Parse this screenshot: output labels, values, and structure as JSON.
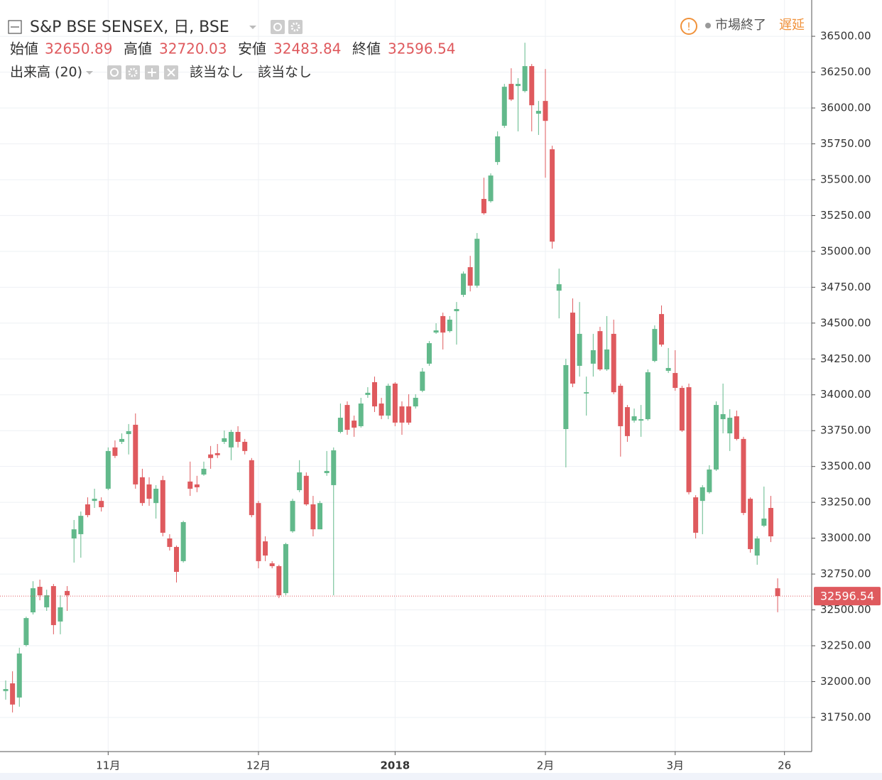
{
  "chart_data": {
    "type": "candlestick",
    "title": "S&P BSE SENSEX, 日, BSE",
    "ohlc_labels": [
      "始値",
      "高値",
      "安値",
      "終値"
    ],
    "volume_label": "出来高 (20)",
    "indicator_values": [
      "該当なし",
      "該当なし"
    ],
    "status": "市場終了",
    "delay": "遅延",
    "up_color": "#62b98b",
    "down_color": "#df5a5e",
    "categories": [
      null,
      null,
      null,
      null,
      null,
      null,
      null,
      null,
      null,
      null,
      null,
      null,
      null,
      null,
      null,
      "11月",
      null,
      null,
      null,
      null,
      null,
      null,
      null,
      null,
      null,
      null,
      null,
      null,
      null,
      null,
      null,
      null,
      null,
      null,
      null,
      null,
      null,
      "12月",
      null,
      null,
      null,
      null,
      null,
      null,
      null,
      null,
      null,
      null,
      null,
      null,
      null,
      null,
      null,
      null,
      null,
      null,
      null,
      "2018",
      null,
      null,
      null,
      null,
      null,
      null,
      null,
      null,
      null,
      null,
      null,
      null,
      null,
      null,
      null,
      null,
      null,
      null,
      null,
      null,
      null,
      "2月",
      null,
      null,
      null,
      null,
      null,
      null,
      null,
      null,
      null,
      null,
      null,
      null,
      null,
      null,
      null,
      null,
      null,
      null,
      "3月",
      null,
      null,
      null,
      null,
      null,
      null,
      null,
      null,
      null,
      null,
      null,
      null,
      null,
      null,
      null,
      "26"
    ],
    "open": [
      31934,
      31988,
      31889,
      32255,
      32483,
      32661,
      32518,
      32666,
      32419,
      32632,
      32998,
      33028,
      33236,
      33260,
      33260,
      33345,
      33633,
      33672,
      33726,
      33791,
      33425,
      33375,
      33245,
      33405,
      32998,
      32939,
      32840,
      33395,
      33375,
      33444,
      33584,
      33593,
      33672,
      33633,
      33741,
      33672,
      33544,
      33245,
      32978,
      32825,
      32805,
      32617,
      33048,
      33335,
      33435,
      33236,
      33062,
      33454,
      33370,
      33741,
      33929,
      33820,
      33781,
      33999,
      34088,
      33939,
      33855,
      34078,
      33919,
      33919,
      33919,
      34028,
      34217,
      34434,
      34549,
      34444,
      34583,
      34697,
      34890,
      34761,
      35366,
      35350,
      35623,
      35876,
      36168,
      36153,
      36118,
      36292,
      35960,
      36049,
      35712,
      34726,
      33761,
      34573,
      34202,
      34009,
      34217,
      34444,
      34177,
      34425,
      34063,
      33914,
      33820,
      33820,
      33830,
      34236,
      34563,
      34167,
      34152,
      34048,
      34053,
      33285,
      33260,
      33321,
      33479,
      33830,
      33731,
      33850,
      33692,
      33275,
      32879,
      33087,
      33211,
      32650.89,
      null
    ],
    "high": [
      32008,
      32072,
      32236,
      32453,
      32700,
      32711,
      32641,
      32681,
      32602,
      32666,
      33127,
      33186,
      33285,
      33345,
      33285,
      33633,
      33682,
      33731,
      33796,
      33870,
      33484,
      33425,
      33370,
      33435,
      33028,
      32949,
      33122,
      33534,
      33435,
      33534,
      33643,
      33657,
      33751,
      33756,
      33781,
      33692,
      33559,
      33260,
      33013,
      32840,
      32815,
      32968,
      33275,
      33544,
      33459,
      33295,
      33260,
      33608,
      33633,
      33939,
      33954,
      33855,
      33979,
      34053,
      34127,
      33979,
      34078,
      34088,
      33954,
      34004,
      34004,
      34187,
      34375,
      34499,
      34573,
      34549,
      34647,
      34860,
      34969,
      35128,
      35514,
      35544,
      35837,
      36168,
      36277,
      36208,
      36455,
      36307,
      36049,
      36272,
      35737,
      34880,
      34251,
      34672,
      34647,
      34127,
      34425,
      34474,
      34549,
      34524,
      34078,
      33929,
      33904,
      33929,
      34177,
      34484,
      34623,
      34326,
      34311,
      34063,
      34078,
      33300,
      33370,
      33509,
      33954,
      34078,
      33899,
      33890,
      33707,
      33285,
      33013,
      33360,
      33295,
      32720.03,
      null
    ],
    "low": [
      31874,
      31785,
      31825,
      32245,
      32468,
      32567,
      32493,
      32330,
      32330,
      32493,
      32830,
      32864,
      33146,
      33211,
      33186,
      33335,
      33559,
      33657,
      33584,
      33345,
      33226,
      33226,
      33137,
      33013,
      32914,
      32691,
      32830,
      33295,
      33321,
      33435,
      33484,
      33559,
      33657,
      33544,
      33633,
      33584,
      33146,
      32790,
      32840,
      32790,
      32582,
      32602,
      33038,
      33321,
      33226,
      33013,
      33062,
      33435,
      32602,
      33731,
      33721,
      33707,
      33771,
      33979,
      33880,
      33830,
      33830,
      33781,
      33721,
      33791,
      33904,
      34018,
      34202,
      34425,
      34316,
      34434,
      34350,
      34682,
      34721,
      34746,
      35256,
      35340,
      35603,
      35861,
      36049,
      35837,
      36108,
      35837,
      35812,
      35514,
      35019,
      34533,
      33494,
      34053,
      34127,
      33855,
      34127,
      34167,
      34167,
      34004,
      33569,
      33672,
      33806,
      33707,
      33820,
      34227,
      34336,
      34152,
      34028,
      33741,
      33305,
      32998,
      33028,
      33311,
      33469,
      33731,
      33608,
      33682,
      33161,
      32899,
      32815,
      33077,
      32973,
      32483.84,
      null
    ],
    "close": [
      31948,
      31840,
      32196,
      32443,
      32651,
      32602,
      32602,
      32394,
      32518,
      32602,
      33062,
      33156,
      33161,
      33275,
      33216,
      33608,
      33574,
      33692,
      33746,
      33375,
      33245,
      33275,
      33345,
      33038,
      32939,
      32765,
      33112,
      33345,
      33355,
      33484,
      33559,
      33579,
      33697,
      33741,
      33672,
      33608,
      33161,
      32840,
      32879,
      32805,
      32602,
      32959,
      33260,
      33459,
      33236,
      33062,
      33245,
      33469,
      33613,
      33840,
      33756,
      33771,
      33939,
      34014,
      33919,
      33855,
      34063,
      33806,
      33806,
      33806,
      33979,
      34162,
      34360,
      34449,
      34434,
      34524,
      34598,
      34845,
      34761,
      35088,
      35266,
      35529,
      35802,
      36148,
      36059,
      36168,
      36292,
      36019,
      35980,
      35910,
      35068,
      34771,
      34207,
      34078,
      34425,
      34018,
      34311,
      34177,
      34316,
      34018,
      33781,
      33712,
      33850,
      33830,
      34157,
      34459,
      34350,
      34187,
      34048,
      33751,
      33321,
      33038,
      33355,
      33479,
      33929,
      33865,
      33840,
      33692,
      33176,
      32924,
      32998,
      33137,
      33013,
      32596.54,
      null
    ],
    "ylim": [
      31512,
      36753
    ],
    "yticks": [
      {
        "value": 31750,
        "label": "31750.00"
      },
      {
        "value": 32000,
        "label": "32000.00"
      },
      {
        "value": 32250,
        "label": "32250.00"
      },
      {
        "value": 32500,
        "label": "32500.00"
      },
      {
        "value": 32750,
        "label": "32750.00"
      },
      {
        "value": 33000,
        "label": "33000.00"
      },
      {
        "value": 33250,
        "label": "33250.00"
      },
      {
        "value": 33500,
        "label": "33500.00"
      },
      {
        "value": 33750,
        "label": "33750.00"
      },
      {
        "value": 34000,
        "label": "34000.00"
      },
      {
        "value": 34250,
        "label": "34250.00"
      },
      {
        "value": 34500,
        "label": "34500.00"
      },
      {
        "value": 34750,
        "label": "34750.00"
      },
      {
        "value": 35000,
        "label": "35000.00"
      },
      {
        "value": 35250,
        "label": "35250.00"
      },
      {
        "value": 35500,
        "label": "35500.00"
      },
      {
        "value": 35750,
        "label": "35750.00"
      },
      {
        "value": 36000,
        "label": "36000.00"
      },
      {
        "value": 36250,
        "label": "36250.00"
      },
      {
        "value": 36500,
        "label": "36500.00"
      }
    ],
    "grid": true
  }
}
